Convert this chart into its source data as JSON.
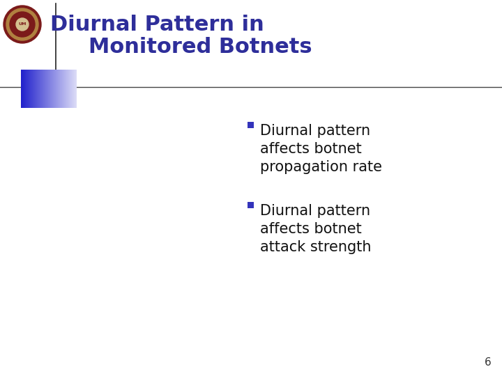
{
  "title_line1": "Diurnal Pattern in",
  "title_line2": "Monitored Botnets",
  "title_color": "#2E2E9A",
  "bullet1_line1": "Diurnal pattern",
  "bullet1_line2": "affects botnet",
  "bullet1_line3": "propagation rate",
  "bullet2_line1": "Diurnal pattern",
  "bullet2_line2": "affects botnet",
  "bullet2_line3": "attack strength",
  "bullet_color": "#3333BB",
  "text_color": "#111111",
  "background_color": "#ffffff",
  "page_number": "6",
  "logo_color": "#7B1A1A",
  "accent_blue": "#2222CC",
  "line_color": "#555555"
}
